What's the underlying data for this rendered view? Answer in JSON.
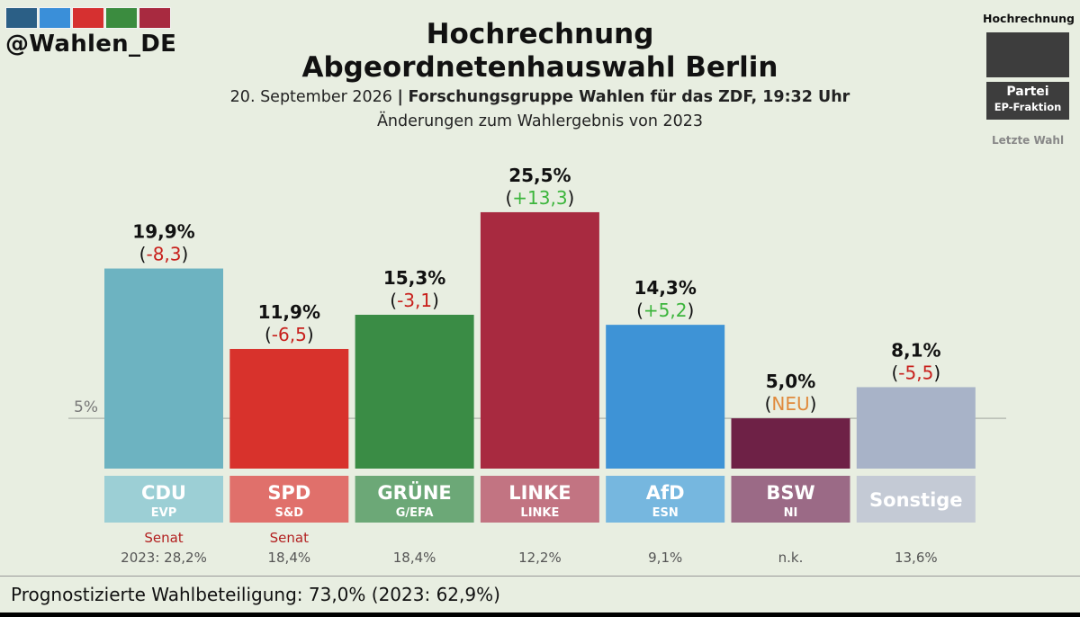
{
  "header": {
    "handle": "@Wahlen_DE",
    "handle_colors": [
      "#2b5f86",
      "#3a8fd9",
      "#d63030",
      "#3b8c3f",
      "#a82a40"
    ],
    "title_line1": "Hochrechnung",
    "title_line2": "Abgeordnetenhauswahl Berlin",
    "subtitle_date": "20. September 2026",
    "subtitle_separator": "|",
    "subtitle_source": "Forschungsgruppe Wahlen für das ZDF, 19:32 Uhr",
    "subtitle_changes": "Änderungen zum Wahlergebnis von 2023"
  },
  "legend": {
    "title": "Hochrechnung",
    "party": "Partei",
    "group": "EP-Fraktion",
    "last_election": "Letzte Wahl"
  },
  "chart_data": {
    "type": "bar",
    "categories": [
      "CDU",
      "SPD",
      "GRÜNE",
      "LINKE",
      "AfD",
      "BSW",
      "Sonstige"
    ],
    "groups": [
      "EVP",
      "S&D",
      "G/EFA",
      "LINKE",
      "ESN",
      "NI",
      ""
    ],
    "values": [
      19.9,
      11.9,
      15.3,
      25.5,
      14.3,
      5.0,
      8.1
    ],
    "value_labels": [
      "19,9%",
      "11,9%",
      "15,3%",
      "25,5%",
      "14,3%",
      "5,0%",
      "8,1%"
    ],
    "change_labels": [
      "-8,3",
      "-6,5",
      "-3,1",
      "+13,3",
      "+5,2",
      "NEU",
      "-5,5"
    ],
    "change_types": [
      "neg",
      "neg",
      "neg",
      "pos",
      "pos",
      "new",
      "neg"
    ],
    "bar_colors": [
      "#6db3c1",
      "#d8322c",
      "#3a8c45",
      "#a82a40",
      "#3e93d6",
      "#6e2146",
      "#a8b3c8"
    ],
    "label_colors": [
      "#9ccfd5",
      "#e0706b",
      "#6ca877",
      "#c27482",
      "#76b7df",
      "#9b6a86",
      "#c4cad5"
    ],
    "senat_labels": [
      "Senat",
      "Senat",
      "",
      "",
      "",
      "",
      ""
    ],
    "previous_labels": [
      "2023: 28,2%",
      "18,4%",
      "18,4%",
      "12,2%",
      "9,1%",
      "n.k.",
      "13,6%"
    ],
    "threshold_label": "5%",
    "threshold_value": 5,
    "ylim": [
      0,
      28
    ],
    "colors": {
      "negative": "#c8201c",
      "positive": "#3cb53c",
      "new": "#e08a3c",
      "senat": "#b22020",
      "previous": "#555555"
    }
  },
  "footer": {
    "turnout": "Prognostizierte Wahlbeteiligung: 73,0% (2023: 62,9%)"
  }
}
